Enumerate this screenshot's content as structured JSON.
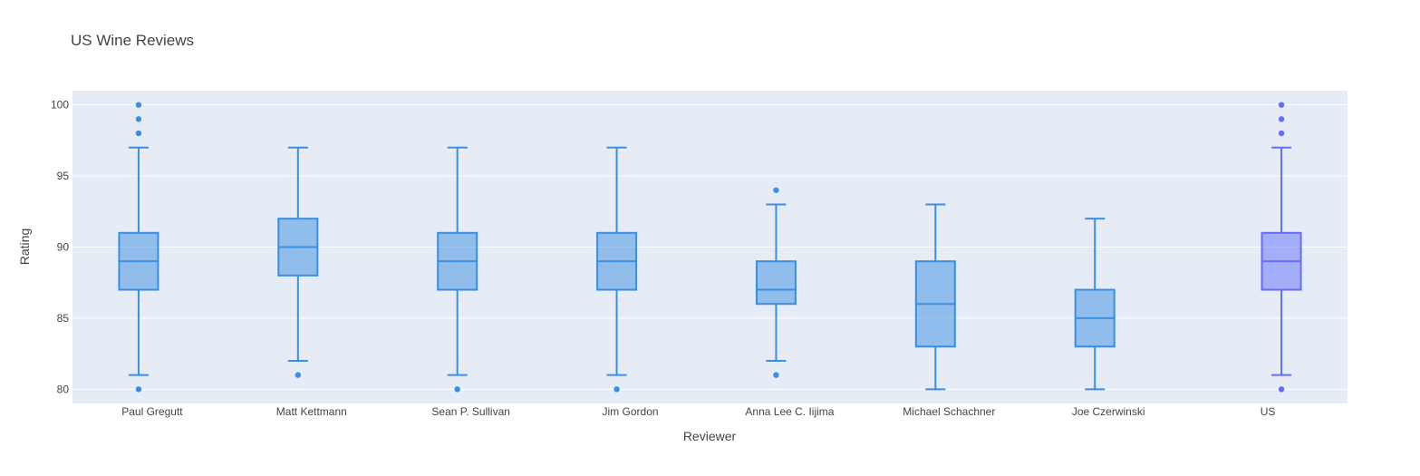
{
  "chart_data": {
    "type": "box",
    "title": "US Wine Reviews",
    "xlabel": "Reviewer",
    "ylabel": "Rating",
    "ylim": [
      79,
      101
    ],
    "yticks": [
      80,
      85,
      90,
      95,
      100
    ],
    "grid": true,
    "colors": {
      "plot_bg": "#e5ecf6",
      "grid": "#ffffff",
      "box_a": "#3b8ee0",
      "box_b": "#636efa"
    },
    "categories": [
      "Paul Gregutt",
      "Matt Kettmann",
      "Sean P. Sullivan",
      "Jim Gordon",
      "Anna Lee C. Iijima",
      "Michael Schachner",
      "Joe Czerwinski",
      "US"
    ],
    "series": [
      {
        "boxes": [
          {
            "category": "Paul Gregutt",
            "lower_fence": 81,
            "q1": 87,
            "median": 89,
            "q3": 91,
            "upper_fence": 97,
            "outliers": [
              80,
              98,
              99,
              100
            ]
          },
          {
            "category": "Matt Kettmann",
            "lower_fence": 82,
            "q1": 88,
            "median": 90,
            "q3": 92,
            "upper_fence": 97,
            "outliers": [
              81
            ]
          },
          {
            "category": "Sean P. Sullivan",
            "lower_fence": 81,
            "q1": 87,
            "median": 89,
            "q3": 91,
            "upper_fence": 97,
            "outliers": [
              80
            ]
          },
          {
            "category": "Jim Gordon",
            "lower_fence": 81,
            "q1": 87,
            "median": 89,
            "q3": 91,
            "upper_fence": 97,
            "outliers": [
              80
            ]
          },
          {
            "category": "Anna Lee C. Iijima",
            "lower_fence": 82,
            "q1": 86,
            "median": 87,
            "q3": 89,
            "upper_fence": 93,
            "outliers": [
              81,
              94
            ]
          },
          {
            "category": "Michael Schachner",
            "lower_fence": 80,
            "q1": 83,
            "median": 86,
            "q3": 89,
            "upper_fence": 93,
            "outliers": []
          },
          {
            "category": "Joe Czerwinski",
            "lower_fence": 80,
            "q1": 83,
            "median": 85,
            "q3": 87,
            "upper_fence": 92,
            "outliers": []
          }
        ]
      },
      {
        "boxes": [
          {
            "category": "US",
            "lower_fence": 81,
            "q1": 87,
            "median": 89,
            "q3": 91,
            "upper_fence": 97,
            "outliers": [
              80,
              98,
              99,
              100
            ]
          }
        ]
      }
    ]
  }
}
